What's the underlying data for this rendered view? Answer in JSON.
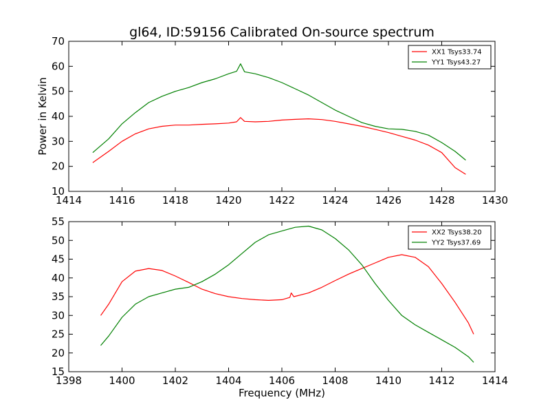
{
  "chart_data": [
    {
      "type": "line",
      "title": "gl64, ID:59156 Calibrated On-source spectrum",
      "xlabel": "",
      "ylabel": "Power in Kelvin",
      "xlim": [
        1414,
        1430
      ],
      "ylim": [
        10,
        70
      ],
      "xticks": [
        "1414",
        "1416",
        "1418",
        "1420",
        "1422",
        "1424",
        "1426",
        "1428",
        "1430"
      ],
      "yticks": [
        "10",
        "20",
        "30",
        "40",
        "50",
        "60",
        "70"
      ],
      "grid": false,
      "legend_position": "top-right",
      "series": [
        {
          "name": "XX1 Tsys33.74",
          "color": "#ff0000",
          "points": [
            [
              1414.9,
              21.5
            ],
            [
              1415.5,
              26
            ],
            [
              1416,
              30
            ],
            [
              1416.5,
              33
            ],
            [
              1417,
              35
            ],
            [
              1417.5,
              36
            ],
            [
              1418,
              36.5
            ],
            [
              1418.5,
              36.5
            ],
            [
              1419,
              36.8
            ],
            [
              1419.5,
              37
            ],
            [
              1420,
              37.3
            ],
            [
              1420.3,
              37.8
            ],
            [
              1420.45,
              39.5
            ],
            [
              1420.6,
              38
            ],
            [
              1421,
              37.8
            ],
            [
              1421.5,
              38
            ],
            [
              1422,
              38.5
            ],
            [
              1422.5,
              38.8
            ],
            [
              1423,
              39
            ],
            [
              1423.5,
              38.7
            ],
            [
              1424,
              38
            ],
            [
              1424.5,
              37
            ],
            [
              1425,
              36
            ],
            [
              1425.5,
              34.8
            ],
            [
              1426,
              33.5
            ],
            [
              1426.5,
              32
            ],
            [
              1427,
              30.5
            ],
            [
              1427.5,
              28.5
            ],
            [
              1428,
              25.5
            ],
            [
              1428.5,
              19.5
            ],
            [
              1428.9,
              16.8
            ]
          ]
        },
        {
          "name": "YY1 Tsys43.27",
          "color": "#008000",
          "points": [
            [
              1414.9,
              25.5
            ],
            [
              1415.5,
              31
            ],
            [
              1416,
              37
            ],
            [
              1416.5,
              41.5
            ],
            [
              1417,
              45.5
            ],
            [
              1417.5,
              48
            ],
            [
              1418,
              50
            ],
            [
              1418.5,
              51.5
            ],
            [
              1419,
              53.5
            ],
            [
              1419.5,
              55
            ],
            [
              1420,
              57
            ],
            [
              1420.3,
              58
            ],
            [
              1420.45,
              61
            ],
            [
              1420.6,
              57.8
            ],
            [
              1421,
              57
            ],
            [
              1421.5,
              55.5
            ],
            [
              1422,
              53.5
            ],
            [
              1422.5,
              51
            ],
            [
              1423,
              48.5
            ],
            [
              1423.5,
              45.5
            ],
            [
              1424,
              42.5
            ],
            [
              1424.5,
              40
            ],
            [
              1425,
              37.5
            ],
            [
              1425.5,
              36
            ],
            [
              1426,
              35
            ],
            [
              1426.5,
              34.8
            ],
            [
              1427,
              34
            ],
            [
              1427.5,
              32.5
            ],
            [
              1428,
              29.5
            ],
            [
              1428.5,
              26
            ],
            [
              1428.9,
              22.5
            ]
          ]
        }
      ]
    },
    {
      "type": "line",
      "title": "",
      "xlabel": "Frequency (MHz)",
      "ylabel": "",
      "xlim": [
        1398,
        1414
      ],
      "ylim": [
        15,
        55
      ],
      "xticks": [
        "1398",
        "1400",
        "1402",
        "1404",
        "1406",
        "1408",
        "1410",
        "1412",
        "1414"
      ],
      "yticks": [
        "15",
        "20",
        "25",
        "30",
        "35",
        "40",
        "45",
        "50",
        "55"
      ],
      "grid": false,
      "legend_position": "top-right",
      "series": [
        {
          "name": "XX2 Tsys38.20",
          "color": "#ff0000",
          "points": [
            [
              1399.2,
              30
            ],
            [
              1399.5,
              33
            ],
            [
              1400,
              39
            ],
            [
              1400.5,
              41.8
            ],
            [
              1401,
              42.5
            ],
            [
              1401.5,
              42
            ],
            [
              1402,
              40.5
            ],
            [
              1402.5,
              38.8
            ],
            [
              1403,
              37
            ],
            [
              1403.5,
              35.8
            ],
            [
              1404,
              35
            ],
            [
              1404.5,
              34.5
            ],
            [
              1405,
              34.2
            ],
            [
              1405.5,
              34
            ],
            [
              1406,
              34.2
            ],
            [
              1406.3,
              34.8
            ],
            [
              1406.35,
              36
            ],
            [
              1406.45,
              35
            ],
            [
              1407,
              36
            ],
            [
              1407.5,
              37.5
            ],
            [
              1408,
              39.3
            ],
            [
              1408.5,
              41
            ],
            [
              1409,
              42.5
            ],
            [
              1409.5,
              44
            ],
            [
              1410,
              45.5
            ],
            [
              1410.5,
              46.2
            ],
            [
              1411,
              45.5
            ],
            [
              1411.5,
              43
            ],
            [
              1412,
              38.5
            ],
            [
              1412.5,
              33.5
            ],
            [
              1413,
              28
            ],
            [
              1413.2,
              25
            ]
          ]
        },
        {
          "name": "YY2 Tsys37.69",
          "color": "#008000",
          "points": [
            [
              1399.2,
              22
            ],
            [
              1399.5,
              24.5
            ],
            [
              1400,
              29.5
            ],
            [
              1400.5,
              33
            ],
            [
              1401,
              35
            ],
            [
              1401.5,
              36
            ],
            [
              1402,
              37
            ],
            [
              1402.5,
              37.5
            ],
            [
              1403,
              39
            ],
            [
              1403.5,
              41
            ],
            [
              1404,
              43.5
            ],
            [
              1404.5,
              46.5
            ],
            [
              1405,
              49.5
            ],
            [
              1405.5,
              51.5
            ],
            [
              1406,
              52.5
            ],
            [
              1406.5,
              53.5
            ],
            [
              1407,
              53.8
            ],
            [
              1407.5,
              52.8
            ],
            [
              1408,
              50.5
            ],
            [
              1408.5,
              47.5
            ],
            [
              1409,
              43.5
            ],
            [
              1409.5,
              38.5
            ],
            [
              1410,
              34
            ],
            [
              1410.5,
              30
            ],
            [
              1411,
              27.5
            ],
            [
              1411.5,
              25.5
            ],
            [
              1412,
              23.5
            ],
            [
              1412.5,
              21.5
            ],
            [
              1413,
              19
            ],
            [
              1413.2,
              17.5
            ]
          ]
        }
      ]
    }
  ]
}
